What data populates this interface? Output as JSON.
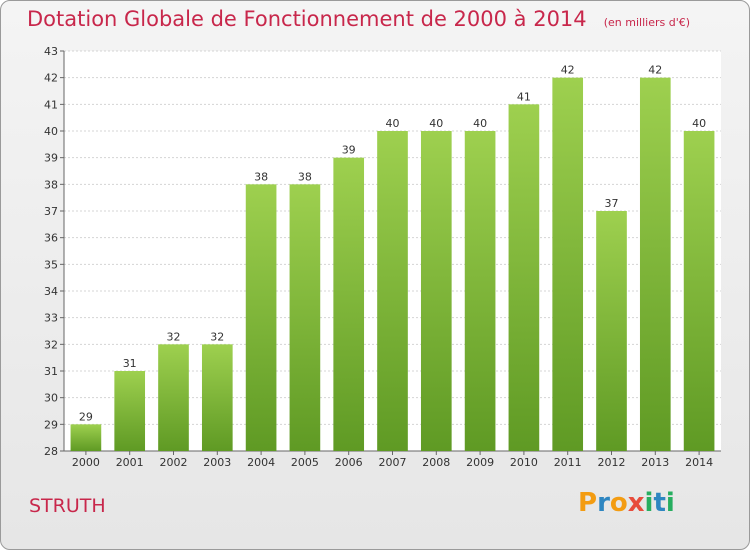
{
  "header": {
    "title": "Dotation Globale de Fonctionnement de 2000 à 2014",
    "subtitle": "(en milliers d'€)"
  },
  "footer": {
    "commune": "STRUTH",
    "logo_letters": [
      "P",
      "r",
      "o",
      "x",
      "i",
      "t",
      "i"
    ],
    "logo_colors": [
      "#f39c12",
      "#2e86c1",
      "#f39c12",
      "#e74c3c",
      "#27ae60",
      "#2e86c1",
      "#27ae60"
    ]
  },
  "chart_data": {
    "type": "bar",
    "title": "Dotation Globale de Fonctionnement de 2000 à 2014",
    "subtitle": "(en milliers d'€)",
    "categories": [
      "2000",
      "2001",
      "2002",
      "2003",
      "2004",
      "2005",
      "2006",
      "2007",
      "2008",
      "2009",
      "2010",
      "2011",
      "2012",
      "2013",
      "2014"
    ],
    "values": [
      29,
      31,
      32,
      32,
      38,
      38,
      39,
      40,
      40,
      40,
      41,
      42,
      37,
      42,
      40
    ],
    "ylim": [
      28,
      43
    ],
    "yticks": [
      28,
      29,
      30,
      31,
      32,
      33,
      34,
      35,
      36,
      37,
      38,
      39,
      40,
      41,
      42,
      43
    ],
    "grid": true,
    "bar_color": "#7ab83a",
    "bar_color_light": "#9ed04f",
    "bar_color_dark": "#5f9a24"
  }
}
